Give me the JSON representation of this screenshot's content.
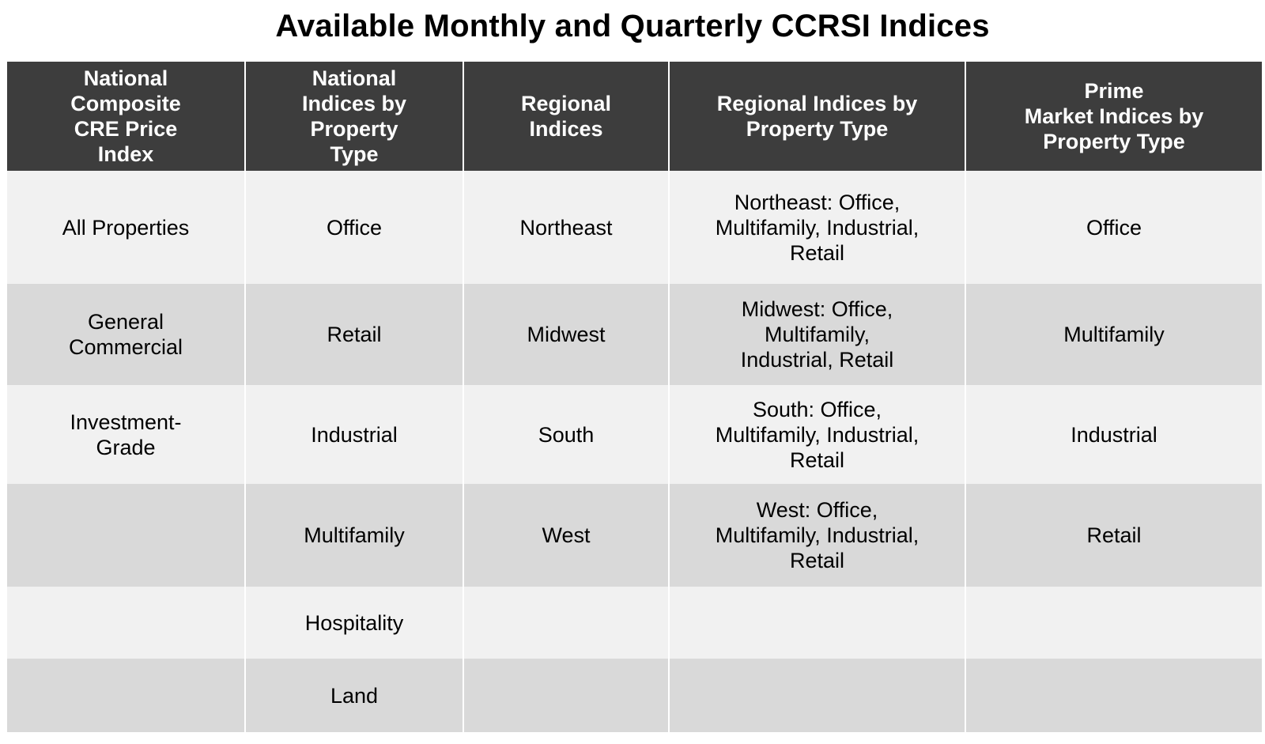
{
  "title": "Available Monthly and Quarterly CCRSI Indices",
  "columns": [
    "National\nComposite\nCRE Price\nIndex",
    "National\nIndices by\nProperty\nType",
    "Regional\nIndices",
    "Regional Indices by\nProperty Type",
    "Prime\nMarket Indices by\nProperty Type"
  ],
  "rows": [
    [
      "All Properties",
      "Office",
      "Northeast",
      "Northeast: Office,\nMultifamily, Industrial,\nRetail",
      "Office"
    ],
    [
      "General\nCommercial",
      "Retail",
      "Midwest",
      "Midwest: Office,\nMultifamily,\nIndustrial, Retail",
      "Multifamily"
    ],
    [
      "Investment-\nGrade\n ",
      "Industrial",
      "South",
      "South: Office,\nMultifamily, Industrial,\nRetail",
      "Industrial"
    ],
    [
      "",
      "Multifamily",
      "West",
      "West: Office,\nMultifamily, Industrial,\nRetail",
      "Retail"
    ],
    [
      "",
      "Hospitality",
      "",
      "",
      ""
    ],
    [
      "",
      "Land",
      "",
      "",
      ""
    ]
  ],
  "colors": {
    "header_bg": "#3d3d3d",
    "header_text": "#ffffff",
    "row_light": "#f1f1f1",
    "row_dark": "#d9d9d9"
  }
}
